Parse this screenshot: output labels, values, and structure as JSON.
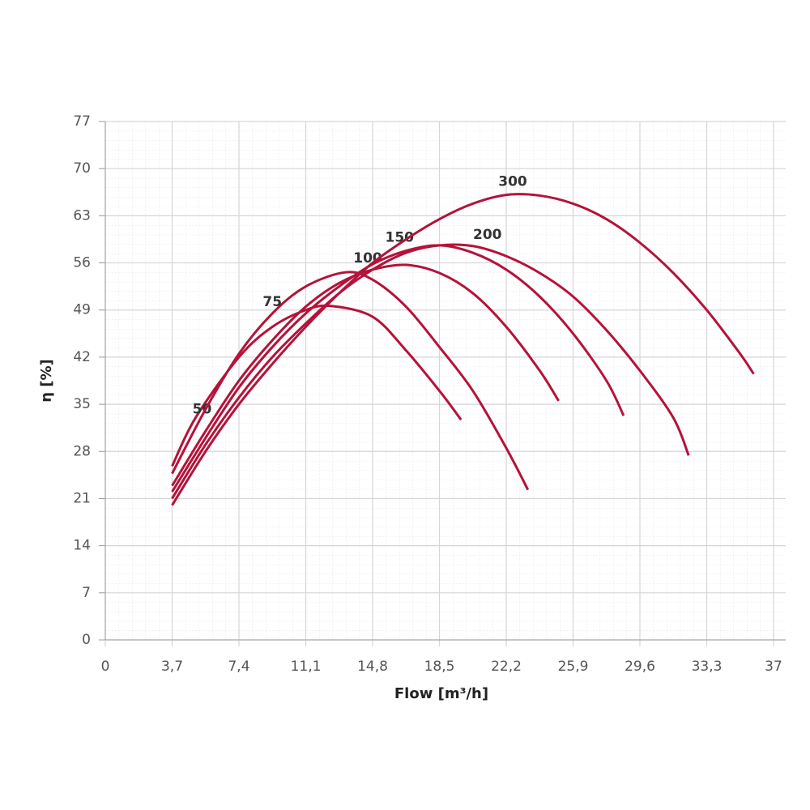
{
  "chart_data": {
    "type": "line",
    "x_label": "Flow [m³/h]",
    "y_label": "η [%]",
    "xlim": [
      0,
      37
    ],
    "ylim": [
      0,
      77
    ],
    "xticks": [
      0,
      {
        "value": 3.7,
        "label": "3,7"
      },
      {
        "value": 7.4,
        "label": "7,4"
      },
      {
        "value": 11.1,
        "label": "11,1"
      },
      {
        "value": 14.8,
        "label": "14,8"
      },
      {
        "value": 18.5,
        "label": "18,5"
      },
      {
        "value": 22.2,
        "label": "22,2"
      },
      {
        "value": 25.9,
        "label": "25,9"
      },
      {
        "value": 29.6,
        "label": "29,6"
      },
      {
        "value": 33.3,
        "label": "33,3"
      },
      37
    ],
    "yticks": [
      0,
      7,
      14,
      21,
      28,
      35,
      42,
      49,
      56,
      63,
      70,
      77
    ],
    "grid": true,
    "series": [
      {
        "name": "50",
        "color": "#b5123a",
        "x": [
          3.7,
          5,
          7.4,
          9.25,
          11.1,
          12.5,
          14.8,
          16.65,
          18.5,
          19.7
        ],
        "values": [
          25.8,
          33,
          42,
          46.5,
          49,
          49.6,
          48,
          43,
          37,
          32.7
        ]
      },
      {
        "name": "75",
        "color": "#b5123a",
        "x": [
          3.7,
          5.5,
          7.4,
          9.25,
          11.1,
          13.3,
          14.8,
          16.65,
          18.5,
          20.35,
          22.2,
          23.4
        ],
        "values": [
          24.7,
          34,
          42.5,
          48.5,
          52.5,
          54.6,
          53.5,
          49.5,
          43.5,
          37,
          28.5,
          22.3
        ]
      },
      {
        "name": "100",
        "color": "#b5123a",
        "x": [
          3.7,
          5.55,
          7.4,
          9.25,
          11.1,
          12.95,
          14.8,
          16.65,
          18.5,
          20.35,
          22.2,
          24.05,
          25.1
        ],
        "values": [
          22.9,
          31,
          38.5,
          44.5,
          49.5,
          53,
          55,
          55.7,
          54.5,
          51.5,
          46.5,
          40,
          35.5
        ]
      },
      {
        "name": "150",
        "color": "#b5123a",
        "x": [
          3.7,
          5.55,
          7.4,
          9.25,
          11.1,
          12.95,
          14.8,
          16.65,
          18.5,
          20.35,
          22.2,
          24.05,
          25.9,
          27.75,
          28.7
        ],
        "values": [
          22,
          30,
          37.5,
          43.5,
          48.5,
          52.5,
          55.8,
          57.8,
          58.6,
          57.5,
          55,
          51,
          45.5,
          38.5,
          33.3
        ]
      },
      {
        "name": "200",
        "color": "#b5123a",
        "x": [
          3.7,
          5.55,
          7.4,
          9.25,
          11.1,
          12.95,
          14.8,
          16.65,
          18.5,
          20.35,
          22.2,
          24.05,
          25.9,
          27.75,
          29.6,
          31.45,
          32.3
        ],
        "values": [
          21,
          29,
          36,
          42,
          47,
          51.5,
          55,
          57.5,
          58.6,
          58.5,
          57,
          54.5,
          51,
          46,
          40,
          33,
          27.4
        ]
      },
      {
        "name": "300",
        "color": "#b5123a",
        "x": [
          3.7,
          5.55,
          7.4,
          9.25,
          11.1,
          12.95,
          14.8,
          16.65,
          18.5,
          20.35,
          22.2,
          24.05,
          25.9,
          27.75,
          29.6,
          31.45,
          33.3,
          35.15,
          35.9
        ],
        "values": [
          20,
          28,
          35,
          41,
          46.5,
          51.5,
          56,
          59.5,
          62.5,
          64.8,
          66.1,
          66,
          64.8,
          62.5,
          59,
          54.5,
          49,
          42.5,
          39.5
        ]
      }
    ]
  }
}
